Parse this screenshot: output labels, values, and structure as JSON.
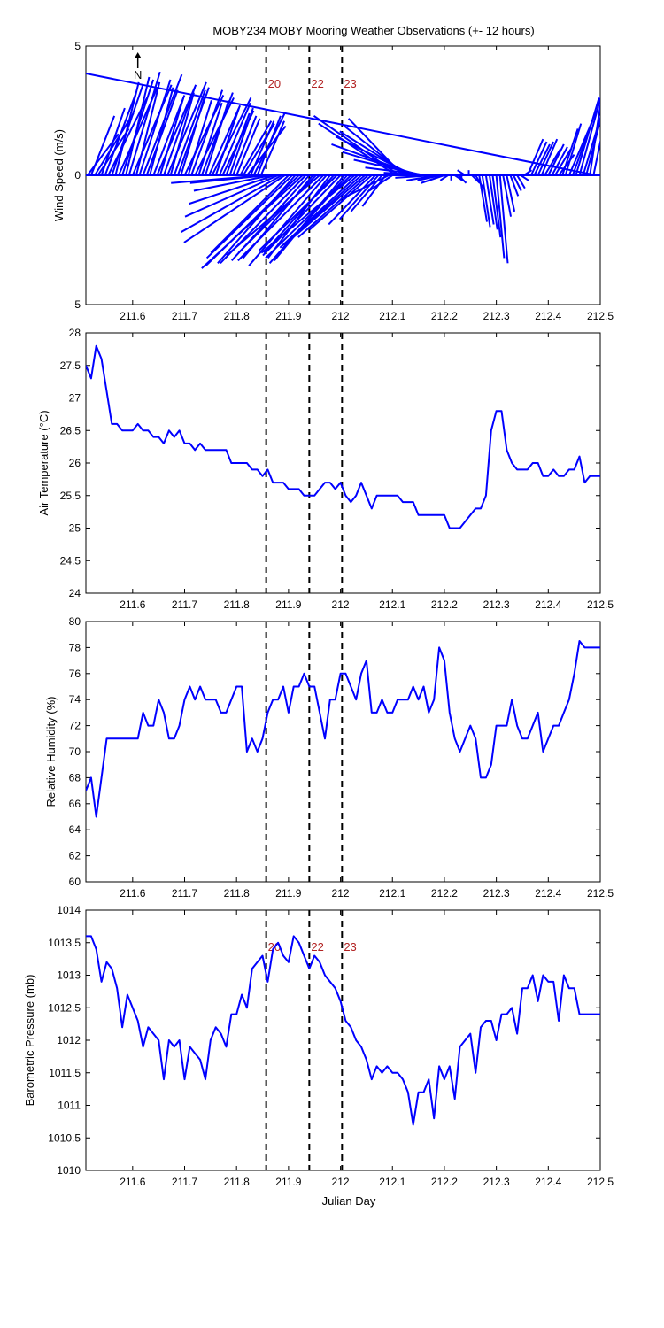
{
  "title": "MOBY234 MOBY Mooring Weather Observations (+- 12 hours)",
  "colors": {
    "series": "#0000ff",
    "marker_label": "#b22222",
    "axis": "#000000"
  },
  "x_axis": {
    "label": "Julian Day",
    "range": [
      211.51,
      212.5
    ],
    "ticks": [
      211.6,
      211.7,
      211.8,
      211.9,
      212.0,
      212.1,
      212.2,
      212.3,
      212.4,
      212.5
    ],
    "tick_labels": [
      "211.6",
      "211.7",
      "211.8",
      "211.9",
      "212",
      "212.1",
      "212.2",
      "212.3",
      "212.4",
      "212.5"
    ]
  },
  "markers": [
    {
      "x": 211.857,
      "label": "20"
    },
    {
      "x": 211.94,
      "label": "22"
    },
    {
      "x": 212.003,
      "label": "23"
    }
  ],
  "north_label": "N",
  "chart_data": [
    {
      "type": "vector",
      "ylabel": "Wind Speed (m/s)",
      "ylim": [
        -5,
        5
      ],
      "yticks": [
        5,
        0,
        5
      ],
      "ytick_values": [
        5,
        0,
        -5
      ],
      "x": [
        211.513,
        211.52,
        211.527,
        211.533,
        211.54,
        211.547,
        211.553,
        211.56,
        211.567,
        211.573,
        211.58,
        211.587,
        211.593,
        211.6,
        211.607,
        211.613,
        211.62,
        211.627,
        211.633,
        211.64,
        211.647,
        211.653,
        211.66,
        211.667,
        211.673,
        211.68,
        211.687,
        211.693,
        211.7,
        211.707,
        211.713,
        211.72,
        211.727,
        211.733,
        211.74,
        211.747,
        211.753,
        211.76,
        211.767,
        211.773,
        211.78,
        211.787,
        211.793,
        211.8,
        211.807,
        211.813,
        211.82,
        211.827,
        211.833,
        211.84,
        211.847,
        211.853,
        211.86,
        211.867,
        211.873,
        211.88,
        211.887,
        211.893,
        211.9,
        211.907,
        211.913,
        211.92,
        211.927,
        211.933,
        211.94,
        211.947,
        211.953,
        211.96,
        211.967,
        211.973,
        211.98,
        211.987,
        211.993,
        212.0,
        212.007,
        212.013,
        212.02,
        212.027,
        212.033,
        212.04,
        212.047,
        212.053,
        212.06,
        212.067,
        212.073,
        212.08,
        212.087,
        212.093,
        212.1,
        212.107,
        212.113,
        212.12,
        212.127,
        212.133,
        212.14,
        212.147,
        212.153,
        212.16,
        212.167,
        212.173,
        212.18,
        212.187,
        212.193,
        212.2,
        212.207,
        212.213,
        212.22,
        212.227,
        212.233,
        212.24,
        212.247,
        212.253,
        212.26,
        212.267,
        212.273,
        212.28,
        212.287,
        212.293,
        212.3,
        212.307,
        212.313,
        212.32,
        212.327,
        212.333,
        212.34,
        212.347,
        212.353,
        212.36,
        212.367,
        212.373,
        212.38,
        212.387,
        212.393,
        212.4,
        212.407,
        212.413,
        212.42,
        212.427,
        212.433,
        212.44,
        212.447,
        212.453,
        212.46,
        212.467,
        212.473,
        212.48,
        212.487,
        212.493
      ],
      "u": [
        0.4,
        0.3,
        0.5,
        0.4,
        0.3,
        0.4,
        0.5,
        0.4,
        0.3,
        0.5,
        0.4,
        0.3,
        0.4,
        0.5,
        0.3,
        0.4,
        0.5,
        0.4,
        0.3,
        0.4,
        0.5,
        0.3,
        0.4,
        0.5,
        0.3,
        0.4,
        0.4,
        0.3,
        0.5,
        0.3,
        0.4,
        0.5,
        0.3,
        0.4,
        0.3,
        0.4,
        0.5,
        0.3,
        0.4,
        0.4,
        0.3,
        0.3,
        0.3,
        0.3,
        0.4,
        0.4,
        0.5,
        0.3,
        0.4,
        0.3,
        0.3,
        -1.2,
        -1.0,
        -1.0,
        -1.1,
        -1.2,
        -1.3,
        -1.3,
        -1.0,
        -1.1,
        -1.0,
        -1.2,
        -1.3,
        -1.1,
        -1.0,
        -0.9,
        -1.0,
        -1.2,
        -1.1,
        -1.0,
        -0.8,
        -0.9,
        -1.0,
        -1.0,
        -0.9,
        -1.0,
        -1.1,
        -1.2,
        -1.0,
        -1.0,
        -1.0,
        -0.9,
        -0.8,
        -0.6,
        -0.5,
        -0.4,
        -0.3,
        -0.6,
        -0.3,
        -1.0,
        -1.1,
        -0.7,
        -0.8,
        -0.9,
        -1.0,
        -1.1,
        -1.0,
        -0.9,
        -0.8,
        -0.6,
        -0.5,
        -0.4,
        -0.3,
        -0.3,
        -0.1,
        0.0,
        0.1,
        0.1,
        0.0,
        -0.1,
        0.0,
        0.1,
        0.1,
        0.1,
        0.1,
        0.1,
        0.1,
        0.1,
        0.1,
        0.1,
        0.1,
        0.1,
        0.1,
        0.1,
        0.1,
        0.1,
        0.1,
        0.2,
        0.2,
        0.2,
        0.2,
        0.2,
        0.2,
        0.2,
        0.2,
        0.2,
        0.2,
        0.2,
        0.2,
        0.3,
        0.3,
        0.3,
        0.3,
        0.3,
        0.3,
        0.2,
        0.3
      ],
      "v": [
        1.6,
        2.3,
        2.4,
        1.8,
        2.6,
        3.2,
        3.0,
        3.5,
        3.6,
        3.4,
        3.7,
        3.8,
        4.0,
        3.5,
        3.6,
        3.7,
        3.9,
        3.3,
        3.4,
        3.1,
        3.5,
        3.0,
        3.4,
        3.6,
        3.2,
        3.3,
        3.4,
        3.0,
        3.1,
        2.9,
        3.3,
        3.0,
        2.8,
        3.2,
        2.9,
        2.7,
        3.0,
        2.6,
        2.8,
        2.5,
        2.4,
        2.6,
        2.3,
        2.2,
        2.1,
        2.0,
        1.9,
        2.1,
        2.4,
        2.3,
        2.1,
        -0.3,
        -0.3,
        -0.6,
        -1.1,
        -1.6,
        -2.2,
        -2.6,
        -3.0,
        -3.2,
        -3.4,
        -3.5,
        -3.6,
        -3.4,
        -3.3,
        -3.2,
        -3.0,
        -3.1,
        -3.3,
        -3.5,
        -3.2,
        -3.0,
        -2.9,
        -3.1,
        -3.3,
        -3.4,
        -3.2,
        -3.0,
        -2.8,
        -2.7,
        -2.6,
        -2.4,
        -2.1,
        -1.9,
        -1.7,
        -1.4,
        -1.2,
        -0.9,
        -0.6,
        2.0,
        2.3,
        2.2,
        1.9,
        1.7,
        1.5,
        1.2,
        0.9,
        0.6,
        0.3,
        0.1,
        -0.1,
        -0.2,
        -0.2,
        -0.3,
        -0.2,
        -0.2,
        -0.2,
        -0.3,
        -0.2,
        0.2,
        0.2,
        -0.3,
        -0.5,
        -1.8,
        -2.0,
        -1.9,
        -2.1,
        -2.4,
        -3.2,
        -3.4,
        -1.6,
        -1.4,
        -0.8,
        -0.6,
        -0.5,
        -0.2,
        0.2,
        1.4,
        1.3,
        1.2,
        1.3,
        1.4,
        1.0,
        1.2,
        1.1,
        1.0,
        0.8,
        1.8,
        2.0,
        2.1,
        2.5,
        3.0,
        3.3,
        3.0,
        3.5,
        4.0,
        4.4,
        4.6,
        4.8
      ]
    },
    {
      "type": "line",
      "ylabel": "Air Temperature (°C)",
      "ylim": [
        24,
        28
      ],
      "yticks": [
        24,
        24.5,
        25,
        25.5,
        26,
        26.5,
        27,
        27.5,
        28
      ],
      "ytick_labels": [
        "24",
        "24.5",
        "25",
        "25.5",
        "26",
        "26.5",
        "27",
        "27.5",
        "28"
      ],
      "x": [
        211.51,
        211.52,
        211.53,
        211.54,
        211.55,
        211.56,
        211.57,
        211.58,
        211.59,
        211.6,
        211.61,
        211.62,
        211.63,
        211.64,
        211.65,
        211.66,
        211.67,
        211.68,
        211.69,
        211.7,
        211.71,
        211.72,
        211.73,
        211.74,
        211.75,
        211.76,
        211.77,
        211.78,
        211.79,
        211.8,
        211.81,
        211.82,
        211.83,
        211.84,
        211.85,
        211.86,
        211.87,
        211.88,
        211.89,
        211.9,
        211.91,
        211.92,
        211.93,
        211.94,
        211.95,
        211.96,
        211.97,
        211.98,
        211.99,
        212.0,
        212.01,
        212.02,
        212.03,
        212.04,
        212.05,
        212.06,
        212.07,
        212.08,
        212.09,
        212.1,
        212.11,
        212.12,
        212.13,
        212.14,
        212.15,
        212.16,
        212.17,
        212.18,
        212.19,
        212.2,
        212.21,
        212.22,
        212.23,
        212.24,
        212.25,
        212.26,
        212.27,
        212.28,
        212.29,
        212.3,
        212.31,
        212.32,
        212.33,
        212.34,
        212.35,
        212.36,
        212.37,
        212.38,
        212.39,
        212.4,
        212.41,
        212.42,
        212.43,
        212.44,
        212.45,
        212.46,
        212.47,
        212.48,
        212.49,
        212.5
      ],
      "values": [
        27.5,
        27.3,
        27.8,
        27.6,
        27.1,
        26.6,
        26.6,
        26.5,
        26.5,
        26.5,
        26.6,
        26.5,
        26.5,
        26.4,
        26.4,
        26.3,
        26.5,
        26.4,
        26.5,
        26.3,
        26.3,
        26.2,
        26.3,
        26.2,
        26.2,
        26.2,
        26.2,
        26.2,
        26.0,
        26.0,
        26.0,
        26.0,
        25.9,
        25.9,
        25.8,
        25.9,
        25.7,
        25.7,
        25.7,
        25.6,
        25.6,
        25.6,
        25.5,
        25.5,
        25.5,
        25.6,
        25.7,
        25.7,
        25.6,
        25.7,
        25.5,
        25.4,
        25.5,
        25.7,
        25.5,
        25.3,
        25.5,
        25.5,
        25.5,
        25.5,
        25.5,
        25.4,
        25.4,
        25.4,
        25.2,
        25.2,
        25.2,
        25.2,
        25.2,
        25.2,
        25.0,
        25.0,
        25.0,
        25.1,
        25.2,
        25.3,
        25.3,
        25.5,
        26.5,
        26.8,
        26.8,
        26.2,
        26.0,
        25.9,
        25.9,
        25.9,
        26.0,
        26.0,
        25.8,
        25.8,
        25.9,
        25.8,
        25.8,
        25.9,
        25.9,
        26.1,
        25.7,
        25.8,
        25.8,
        25.8
      ]
    },
    {
      "type": "line",
      "ylabel": "Relative Humidity (%)",
      "ylim": [
        60,
        80
      ],
      "yticks": [
        60,
        62,
        64,
        66,
        68,
        70,
        72,
        74,
        76,
        78,
        80
      ],
      "ytick_labels": [
        "60",
        "62",
        "64",
        "66",
        "68",
        "70",
        "72",
        "74",
        "76",
        "78",
        "80"
      ],
      "x": [
        211.51,
        211.52,
        211.53,
        211.54,
        211.55,
        211.56,
        211.57,
        211.58,
        211.59,
        211.6,
        211.61,
        211.62,
        211.63,
        211.64,
        211.65,
        211.66,
        211.67,
        211.68,
        211.69,
        211.7,
        211.71,
        211.72,
        211.73,
        211.74,
        211.75,
        211.76,
        211.77,
        211.78,
        211.79,
        211.8,
        211.81,
        211.82,
        211.83,
        211.84,
        211.85,
        211.86,
        211.87,
        211.88,
        211.89,
        211.9,
        211.91,
        211.92,
        211.93,
        211.94,
        211.95,
        211.96,
        211.97,
        211.98,
        211.99,
        212.0,
        212.01,
        212.02,
        212.03,
        212.04,
        212.05,
        212.06,
        212.07,
        212.08,
        212.09,
        212.1,
        212.11,
        212.12,
        212.13,
        212.14,
        212.15,
        212.16,
        212.17,
        212.18,
        212.19,
        212.2,
        212.21,
        212.22,
        212.23,
        212.24,
        212.25,
        212.26,
        212.27,
        212.28,
        212.29,
        212.3,
        212.31,
        212.32,
        212.33,
        212.34,
        212.35,
        212.36,
        212.37,
        212.38,
        212.39,
        212.4,
        212.41,
        212.42,
        212.43,
        212.44,
        212.45,
        212.46,
        212.47,
        212.48,
        212.49,
        212.5
      ],
      "values": [
        67,
        68,
        65,
        68,
        71,
        71,
        71,
        71,
        71,
        71,
        71,
        73,
        72,
        72,
        74,
        73,
        71,
        71,
        72,
        74,
        75,
        74,
        75,
        74,
        74,
        74,
        73,
        73,
        74,
        75,
        75,
        70,
        71,
        70,
        71,
        73,
        74,
        74,
        75,
        73,
        75,
        75,
        76,
        75,
        75,
        73,
        71,
        74,
        74,
        76,
        76,
        75,
        74,
        76,
        77,
        73,
        73,
        74,
        73,
        73,
        74,
        74,
        74,
        75,
        74,
        75,
        73,
        74,
        78,
        77,
        73,
        71,
        70,
        71,
        72,
        71,
        68,
        68,
        69,
        72,
        72,
        72,
        74,
        72,
        71,
        71,
        72,
        73,
        70,
        71,
        72,
        72,
        73,
        74,
        76,
        78.5,
        78,
        78,
        78,
        78
      ]
    },
    {
      "type": "line",
      "ylabel": "Barometric Pressure (mb)",
      "xlabel": "Julian Day",
      "ylim": [
        1010,
        1014
      ],
      "yticks": [
        1010,
        1010.5,
        1011,
        1011.5,
        1012,
        1012.5,
        1013,
        1013.5,
        1014
      ],
      "ytick_labels": [
        "1010",
        "1010.5",
        "1011",
        "1011.5",
        "1012",
        "1012.5",
        "1013",
        "1013.5",
        "1014"
      ],
      "x": [
        211.51,
        211.52,
        211.53,
        211.54,
        211.55,
        211.56,
        211.57,
        211.58,
        211.59,
        211.6,
        211.61,
        211.62,
        211.63,
        211.64,
        211.65,
        211.66,
        211.67,
        211.68,
        211.69,
        211.7,
        211.71,
        211.72,
        211.73,
        211.74,
        211.75,
        211.76,
        211.77,
        211.78,
        211.79,
        211.8,
        211.81,
        211.82,
        211.83,
        211.84,
        211.85,
        211.86,
        211.87,
        211.88,
        211.89,
        211.9,
        211.91,
        211.92,
        211.93,
        211.94,
        211.95,
        211.96,
        211.97,
        211.98,
        211.99,
        212.0,
        212.01,
        212.02,
        212.03,
        212.04,
        212.05,
        212.06,
        212.07,
        212.08,
        212.09,
        212.1,
        212.11,
        212.12,
        212.13,
        212.14,
        212.15,
        212.16,
        212.17,
        212.18,
        212.19,
        212.2,
        212.21,
        212.22,
        212.23,
        212.24,
        212.25,
        212.26,
        212.27,
        212.28,
        212.29,
        212.3,
        212.31,
        212.32,
        212.33,
        212.34,
        212.35,
        212.36,
        212.37,
        212.38,
        212.39,
        212.4,
        212.41,
        212.42,
        212.43,
        212.44,
        212.45,
        212.46,
        212.47,
        212.48,
        212.49,
        212.5
      ],
      "values": [
        1013.6,
        1013.6,
        1013.4,
        1012.9,
        1013.2,
        1013.1,
        1012.8,
        1012.2,
        1012.7,
        1012.5,
        1012.3,
        1011.9,
        1012.2,
        1012.1,
        1012.0,
        1011.4,
        1012.0,
        1011.9,
        1012.0,
        1011.4,
        1011.9,
        1011.8,
        1011.7,
        1011.4,
        1012.0,
        1012.2,
        1012.1,
        1011.9,
        1012.4,
        1012.4,
        1012.7,
        1012.5,
        1013.1,
        1013.2,
        1013.3,
        1012.9,
        1013.4,
        1013.5,
        1013.3,
        1013.2,
        1013.6,
        1013.5,
        1013.3,
        1013.1,
        1013.3,
        1013.2,
        1013.0,
        1012.9,
        1012.8,
        1012.6,
        1012.3,
        1012.2,
        1012.0,
        1011.9,
        1011.7,
        1011.4,
        1011.6,
        1011.5,
        1011.6,
        1011.5,
        1011.5,
        1011.4,
        1011.2,
        1010.7,
        1011.2,
        1011.2,
        1011.4,
        1010.8,
        1011.6,
        1011.4,
        1011.6,
        1011.1,
        1011.9,
        1012.0,
        1012.1,
        1011.5,
        1012.2,
        1012.3,
        1012.3,
        1012.0,
        1012.4,
        1012.4,
        1012.5,
        1012.1,
        1012.8,
        1012.8,
        1013.0,
        1012.6,
        1013.0,
        1012.9,
        1012.9,
        1012.3,
        1013.0,
        1012.8,
        1012.8,
        1012.4,
        1012.4,
        1012.4,
        1012.4,
        1012.4
      ]
    }
  ]
}
